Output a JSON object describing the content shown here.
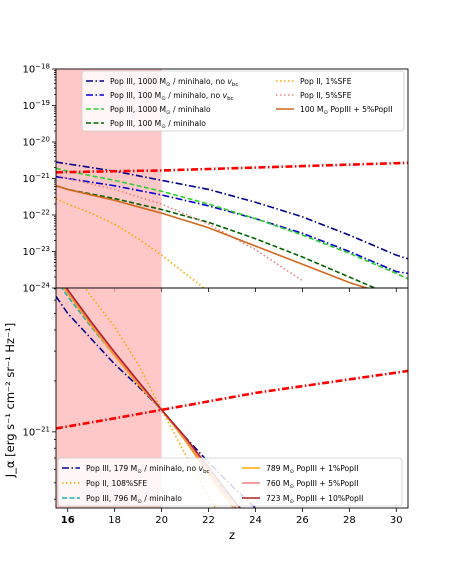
{
  "chart_data": [
    {
      "type": "line",
      "panel": "top",
      "xlim": [
        15.5,
        30.5
      ],
      "ylim_log10": [
        -24,
        -18
      ],
      "yscale": "log",
      "ytick_labels": [
        {
          "exp": -18,
          "base": "10",
          "sup": "−18"
        },
        {
          "exp": -19,
          "base": "10",
          "sup": "−19"
        },
        {
          "exp": -20,
          "base": "10",
          "sup": "−20"
        },
        {
          "exp": -21,
          "base": "10",
          "sup": "−21"
        },
        {
          "exp": -22,
          "base": "10",
          "sup": "−22"
        },
        {
          "exp": -23,
          "base": "10",
          "sup": "−23"
        },
        {
          "exp": -24,
          "base": "10",
          "sup": "−24"
        }
      ],
      "shaded_region_x": [
        15.5,
        20.0
      ],
      "legend_placement": "top",
      "series": [
        {
          "name": "Pop III, 1000 M⊙ / minihalo, no v_bc",
          "color": "#00008b",
          "dash": "dashdot",
          "x": [
            15.5,
            16,
            18,
            20,
            22,
            24,
            26,
            28,
            30,
            30.5
          ],
          "y_log10": [
            -20.55,
            -20.6,
            -20.8,
            -21.05,
            -21.3,
            -21.65,
            -22.05,
            -22.55,
            -23.1,
            -23.2
          ]
        },
        {
          "name": "Pop III, 100 M⊙ / minihalo, no v_bc",
          "color": "#0000cd",
          "dash": "dashdot",
          "x": [
            15.5,
            16,
            18,
            20,
            22,
            24,
            26,
            28,
            30,
            30.5
          ],
          "y_log10": [
            -20.95,
            -21.0,
            -21.2,
            -21.45,
            -21.75,
            -22.1,
            -22.5,
            -23.0,
            -23.55,
            -23.6
          ]
        },
        {
          "name": "Pop III, 1000 M⊙ / minihalo",
          "color": "#32cd32",
          "dash": "dashed",
          "x": [
            15.5,
            16,
            18,
            20,
            22,
            24,
            26,
            28,
            30,
            30.5
          ],
          "y_log10": [
            -20.72,
            -20.8,
            -21.05,
            -21.35,
            -21.7,
            -22.1,
            -22.55,
            -23.05,
            -23.6,
            -23.75
          ]
        },
        {
          "name": "Pop III, 100 M⊙ / minihalo",
          "color": "#006400",
          "dash": "dashed",
          "x": [
            15.5,
            16,
            18,
            20,
            22,
            24,
            26,
            28,
            30
          ],
          "y_log10": [
            -21.2,
            -21.3,
            -21.55,
            -21.85,
            -22.2,
            -22.65,
            -23.15,
            -23.7,
            -24.25
          ]
        },
        {
          "name": "Pop II, 1%SFE",
          "color": "#ffa500",
          "dash": "dotted",
          "x": [
            15.5,
            16,
            17,
            18,
            19,
            20,
            21,
            22,
            23
          ],
          "y_log10": [
            -21.55,
            -21.7,
            -21.95,
            -22.25,
            -22.65,
            -23.1,
            -23.6,
            -24.1,
            -24.6
          ]
        },
        {
          "name": "Pop II, 5%SFE",
          "color": "#f08080",
          "dash": "dotted",
          "x": [
            15.5,
            16,
            18,
            20,
            22,
            24,
            26
          ],
          "y_log10": [
            -20.9,
            -21.0,
            -21.3,
            -21.7,
            -22.25,
            -22.95,
            -23.8
          ]
        },
        {
          "name": "100 M⊙ PopIII + 5%PopII",
          "color": "#d2691e",
          "dash": "solid",
          "x": [
            15.5,
            16,
            18,
            20,
            22,
            24,
            26,
            28,
            29
          ],
          "y_log10": [
            -21.2,
            -21.3,
            -21.6,
            -21.95,
            -22.35,
            -22.85,
            -23.35,
            -23.85,
            -24.05
          ]
        },
        {
          "name": "",
          "color": "#ff0000",
          "dash": "dashdot",
          "x": [
            15.5,
            18,
            20,
            22,
            24,
            26,
            28,
            30,
            30.5
          ],
          "y_log10": [
            -20.83,
            -20.8,
            -20.78,
            -20.74,
            -20.7,
            -20.66,
            -20.62,
            -20.58,
            -20.57
          ]
        }
      ],
      "legend_entries": [
        {
          "label_parts": [
            "Pop III, 1000 M",
            "⊙",
            " / minihalo, no ",
            "v",
            "bc"
          ],
          "color": "#00008b",
          "dash": "dashdot"
        },
        {
          "label_parts": [
            "Pop III, 100 M",
            "⊙",
            " / minihalo, no ",
            "v",
            "bc"
          ],
          "color": "#0000cd",
          "dash": "dashdot"
        },
        {
          "label_parts": [
            "Pop III, 1000 M",
            "⊙",
            " / minihalo",
            "",
            ""
          ],
          "color": "#32cd32",
          "dash": "dashed"
        },
        {
          "label_parts": [
            "Pop III, 100 M",
            "⊙",
            " / minihalo",
            "",
            ""
          ],
          "color": "#006400",
          "dash": "dashed"
        },
        {
          "label_parts": [
            "Pop II, 1%SFE",
            "",
            "",
            "",
            ""
          ],
          "color": "#ffa500",
          "dash": "dotted"
        },
        {
          "label_parts": [
            "Pop II, 5%SFE",
            "",
            "",
            "",
            ""
          ],
          "color": "#f08080",
          "dash": "dotted"
        },
        {
          "label_parts": [
            "100 M",
            "⊙",
            " PopIII + 5%PopII",
            "",
            ""
          ],
          "color": "#d2691e",
          "dash": "solid"
        }
      ]
    },
    {
      "type": "line",
      "panel": "bottom",
      "xlim": [
        15.5,
        30.5
      ],
      "ylim_log10": [
        -21.45,
        -20.15
      ],
      "yscale": "log",
      "ytick_labels": [
        {
          "exp": -21,
          "base": "10",
          "sup": "−21"
        }
      ],
      "xlabel": "z",
      "ylabel": "J_α [erg s⁻¹ cm⁻² sr⁻¹ Hz⁻¹]",
      "xtick_labels": [
        "16",
        "18",
        "20",
        "22",
        "24",
        "26",
        "28",
        "30"
      ],
      "shaded_region_x": [
        15.5,
        20.0
      ],
      "legend_placement": "bottom",
      "series": [
        {
          "name": "Pop III, 179 M⊙ / minihalo, no v_bc",
          "color": "#00008b",
          "dash": "dashdot",
          "x": [
            15.5,
            16,
            17,
            18,
            19,
            20,
            21,
            22,
            23,
            24,
            25
          ],
          "y_log10": [
            -20.2,
            -20.3,
            -20.45,
            -20.6,
            -20.73,
            -20.87,
            -21.03,
            -21.18,
            -21.32,
            -21.45,
            -21.58
          ]
        },
        {
          "name": "Pop II, 108%SFE",
          "color": "#ffa500",
          "dash": "dotted",
          "x": [
            16.5,
            17,
            18,
            19,
            20,
            21,
            22,
            22.6
          ],
          "y_log10": [
            -20.1,
            -20.2,
            -20.38,
            -20.6,
            -20.87,
            -21.13,
            -21.38,
            -21.52
          ]
        },
        {
          "name": "Pop III, 796 M⊙ / minihalo",
          "color": "#20b2aa",
          "dash": "dashed",
          "x": [
            15.5,
            16,
            17,
            18,
            19,
            20,
            21,
            22,
            23,
            24
          ],
          "y_log10": [
            -20.1,
            -20.2,
            -20.38,
            -20.55,
            -20.72,
            -20.87,
            -21.05,
            -21.23,
            -21.4,
            -21.55
          ]
        },
        {
          "name": "789 M⊙ PopIII + 1%PopII",
          "color": "#ffa500",
          "dash": "solid",
          "x": [
            15.5,
            16,
            17,
            18,
            19,
            20,
            21,
            22,
            23,
            23.5
          ],
          "y_log10": [
            -20.08,
            -20.18,
            -20.37,
            -20.55,
            -20.72,
            -20.87,
            -21.05,
            -21.25,
            -21.44,
            -21.53
          ]
        },
        {
          "name": "760 M⊙ PopIII + 5%PopII",
          "color": "#f08080",
          "dash": "solid",
          "x": [
            15.5,
            16,
            17,
            18,
            19,
            20,
            21,
            22,
            23,
            23.6
          ],
          "y_log10": [
            -20.07,
            -20.17,
            -20.36,
            -20.54,
            -20.71,
            -20.87,
            -21.04,
            -21.23,
            -21.42,
            -21.53
          ]
        },
        {
          "name": "723 M⊙ PopIII + 10%PopII",
          "color": "#b22222",
          "dash": "solid",
          "x": [
            15.5,
            16,
            17,
            18,
            19,
            20,
            21,
            22,
            23,
            23.8
          ],
          "y_log10": [
            -20.06,
            -20.16,
            -20.35,
            -20.53,
            -20.7,
            -20.87,
            -21.03,
            -21.21,
            -21.39,
            -21.53
          ]
        },
        {
          "name": "",
          "color": "#ff0000",
          "dash": "dashdot",
          "x": [
            15.5,
            18,
            20,
            22,
            24,
            26,
            28,
            30,
            30.5
          ],
          "y_log10": [
            -20.98,
            -20.92,
            -20.87,
            -20.82,
            -20.77,
            -20.73,
            -20.69,
            -20.65,
            -20.64
          ]
        }
      ],
      "legend_entries": [
        {
          "label_parts": [
            "Pop III, 179 M",
            "⊙",
            " / minihalo, no ",
            "v",
            "bc"
          ],
          "color": "#00008b",
          "dash": "dashdot"
        },
        {
          "label_parts": [
            "Pop II, 108%SFE",
            "",
            "",
            "",
            ""
          ],
          "color": "#ffa500",
          "dash": "dotted"
        },
        {
          "label_parts": [
            "Pop III, 796 M",
            "⊙",
            " / minihalo",
            "",
            ""
          ],
          "color": "#20b2aa",
          "dash": "dashed"
        },
        {
          "label_parts": [
            "789 M",
            "⊙",
            " PopIII + 1%PopII",
            "",
            ""
          ],
          "color": "#ffa500",
          "dash": "solid"
        },
        {
          "label_parts": [
            "760 M",
            "⊙",
            " PopIII + 5%PopII",
            "",
            ""
          ],
          "color": "#f08080",
          "dash": "solid"
        },
        {
          "label_parts": [
            "723 M",
            "⊙",
            " PopIII + 10%PopII",
            "",
            ""
          ],
          "color": "#b22222",
          "dash": "solid"
        }
      ]
    }
  ],
  "colors": {
    "shade": "#ffb6b6",
    "red_line": "#ff0000"
  }
}
